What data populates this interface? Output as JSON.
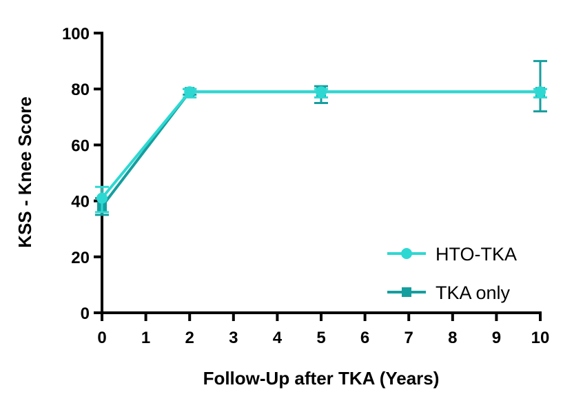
{
  "chart_data": {
    "type": "line",
    "title": "",
    "xlabel": "Follow-Up after TKA (Years)",
    "ylabel": "KSS - Knee Score",
    "xlim": [
      0,
      10
    ],
    "ylim": [
      0,
      100
    ],
    "x_ticks": [
      0,
      1,
      2,
      3,
      4,
      5,
      6,
      7,
      8,
      9,
      10
    ],
    "y_ticks": [
      0,
      20,
      40,
      60,
      80,
      100
    ],
    "grid": false,
    "legend_position": "bottom-right",
    "series": [
      {
        "name": "HTO-TKA",
        "marker": "circle",
        "color": "#2ed8d2",
        "x": [
          0,
          2,
          5,
          10
        ],
        "y": [
          41,
          79,
          79,
          79
        ],
        "err_low": [
          36,
          77,
          77,
          77
        ],
        "err_high": [
          45,
          80,
          80,
          80
        ]
      },
      {
        "name": "TKA only",
        "marker": "square",
        "color": "#159e9e",
        "x": [
          0,
          2,
          5,
          10
        ],
        "y": [
          38,
          79,
          79,
          79
        ],
        "err_low": [
          35,
          78,
          75,
          72
        ],
        "err_high": [
          41,
          80,
          81,
          90
        ]
      }
    ]
  }
}
